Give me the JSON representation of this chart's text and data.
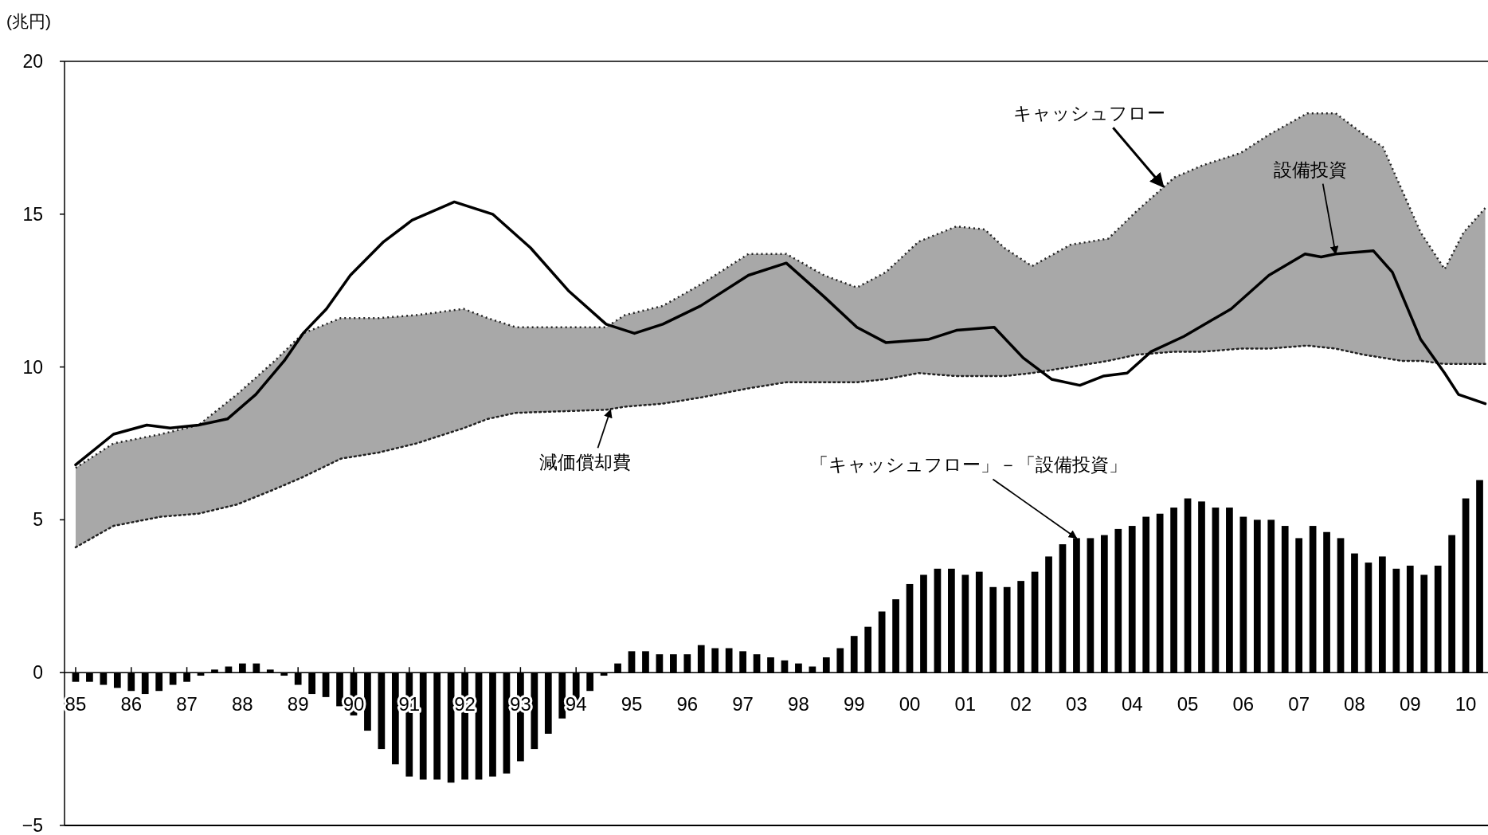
{
  "chart_data": {
    "type": "bar",
    "ylabel": "(兆円)",
    "xlim": [
      1984.8,
      2010.4
    ],
    "ylim": [
      -5,
      20
    ],
    "yticks": [
      -5,
      0,
      5,
      10,
      15,
      20
    ],
    "xticks": [
      {
        "value": 1985,
        "label": "85"
      },
      {
        "value": 1986,
        "label": "86"
      },
      {
        "value": 1987,
        "label": "87"
      },
      {
        "value": 1988,
        "label": "88"
      },
      {
        "value": 1989,
        "label": "89"
      },
      {
        "value": 1990,
        "label": "90"
      },
      {
        "value": 1991,
        "label": "91"
      },
      {
        "value": 1992,
        "label": "92"
      },
      {
        "value": 1993,
        "label": "93"
      },
      {
        "value": 1994,
        "label": "94"
      },
      {
        "value": 1995,
        "label": "95"
      },
      {
        "value": 1996,
        "label": "96"
      },
      {
        "value": 1997,
        "label": "97"
      },
      {
        "value": 1998,
        "label": "98"
      },
      {
        "value": 1999,
        "label": "99"
      },
      {
        "value": 2000,
        "label": "00"
      },
      {
        "value": 2001,
        "label": "01"
      },
      {
        "value": 2002,
        "label": "02"
      },
      {
        "value": 2003,
        "label": "03"
      },
      {
        "value": 2004,
        "label": "04"
      },
      {
        "value": 2005,
        "label": "05"
      },
      {
        "value": 2006,
        "label": "06"
      },
      {
        "value": 2007,
        "label": "07"
      },
      {
        "value": 2008,
        "label": "08"
      },
      {
        "value": 2009,
        "label": "09"
      },
      {
        "value": 2010,
        "label": "10"
      }
    ],
    "series": [
      {
        "type": "area",
        "color": "#a8a8a8",
        "line_style": "dotted",
        "x": [
          1985.0,
          1985.68,
          1986.53,
          1987.21,
          1987.9,
          1988.58,
          1989.09,
          1989.77,
          1990.45,
          1991.13,
          1991.98,
          1992.41,
          1992.92,
          1994.54,
          1994.88,
          1995.56,
          1996.24,
          1997.1,
          1997.78,
          1998.46,
          1999.05,
          1999.57,
          2000.16,
          2000.84,
          2001.35,
          2001.7,
          2002.2,
          2002.89,
          2003.57,
          2004.08,
          2004.76,
          2005.27,
          2005.95,
          2006.46,
          2007.15,
          2007.66,
          2008.17,
          2008.51,
          2008.85,
          2009.19,
          2009.62,
          2009.96,
          2010.35
        ],
        "values": [
          6.7,
          7.5,
          7.8,
          8.1,
          9.1,
          10.2,
          11.1,
          11.6,
          11.6,
          11.7,
          11.9,
          11.6,
          11.3,
          11.3,
          11.7,
          12.0,
          12.7,
          13.7,
          13.7,
          13.0,
          12.6,
          13.1,
          14.1,
          14.6,
          14.5,
          13.9,
          13.3,
          14.0,
          14.2,
          15.1,
          16.2,
          16.6,
          17.0,
          17.6,
          18.3,
          18.3,
          17.6,
          17.2,
          15.8,
          14.4,
          13.2,
          14.4,
          15.2
        ]
      },
      {
        "type": "line",
        "color": "#222222",
        "line_style": "dotted",
        "x": [
          1985.0,
          1985.68,
          1986.53,
          1987.21,
          1987.9,
          1988.58,
          1989.09,
          1989.77,
          1990.45,
          1991.13,
          1991.98,
          1992.41,
          1992.92,
          1994.54,
          1994.88,
          1995.56,
          1996.24,
          1997.1,
          1997.78,
          1998.46,
          1999.05,
          1999.57,
          2000.16,
          2000.84,
          2001.35,
          2001.7,
          2002.2,
          2002.89,
          2003.57,
          2004.08,
          2004.76,
          2005.27,
          2005.95,
          2006.46,
          2007.15,
          2007.66,
          2008.17,
          2008.51,
          2008.85,
          2009.19,
          2009.62,
          2009.96,
          2010.35
        ],
        "values": [
          4.1,
          4.8,
          5.1,
          5.2,
          5.5,
          6.0,
          6.4,
          7.0,
          7.2,
          7.5,
          8.0,
          8.3,
          8.5,
          8.6,
          8.7,
          8.8,
          9.0,
          9.3,
          9.5,
          9.5,
          9.5,
          9.6,
          9.8,
          9.7,
          9.7,
          9.7,
          9.8,
          10.0,
          10.2,
          10.4,
          10.5,
          10.5,
          10.6,
          10.6,
          10.7,
          10.6,
          10.4,
          10.3,
          10.2,
          10.2,
          10.1,
          10.1,
          10.1
        ]
      },
      {
        "type": "line",
        "color": "#000000",
        "line_style": "solid",
        "x": [
          1985.0,
          1985.68,
          1986.28,
          1986.7,
          1987.21,
          1987.73,
          1988.24,
          1988.75,
          1989.09,
          1989.51,
          1989.94,
          1990.54,
          1991.05,
          1991.81,
          1992.5,
          1993.18,
          1993.86,
          1994.54,
          1995.05,
          1995.56,
          1996.24,
          1997.1,
          1997.78,
          1998.46,
          1999.05,
          1999.57,
          2000.33,
          2000.84,
          2001.52,
          2002.04,
          2002.55,
          2003.06,
          2003.48,
          2003.91,
          2004.34,
          2004.93,
          2005.78,
          2006.46,
          2007.11,
          2007.4,
          2007.66,
          2008.34,
          2008.68,
          2009.19,
          2009.62,
          2009.87,
          2010.35
        ],
        "values": [
          6.8,
          7.8,
          8.1,
          8.0,
          8.1,
          8.3,
          9.1,
          10.2,
          11.1,
          11.9,
          13.0,
          14.1,
          14.8,
          15.4,
          15.0,
          13.9,
          12.5,
          11.4,
          11.1,
          11.4,
          12.0,
          13.0,
          13.4,
          12.3,
          11.3,
          10.8,
          10.9,
          11.2,
          11.3,
          10.3,
          9.6,
          9.4,
          9.7,
          9.8,
          10.5,
          11.0,
          11.9,
          13.0,
          13.7,
          13.6,
          13.7,
          13.8,
          13.1,
          10.9,
          9.8,
          9.1,
          8.8
        ]
      },
      {
        "color": "#000000",
        "x": [
          1985,
          1985.25,
          1985.5,
          1985.75,
          1986,
          1986.25,
          1986.5,
          1986.75,
          1987,
          1987.25,
          1987.5,
          1987.75,
          1988,
          1988.25,
          1988.5,
          1988.75,
          1989,
          1989.25,
          1989.5,
          1989.75,
          1990,
          1990.25,
          1990.5,
          1990.75,
          1991,
          1991.25,
          1991.5,
          1991.75,
          1992,
          1992.25,
          1992.5,
          1992.75,
          1993,
          1993.25,
          1993.5,
          1993.75,
          1994,
          1994.25,
          1994.5,
          1994.75,
          1995,
          1995.25,
          1995.5,
          1995.75,
          1996,
          1996.25,
          1996.5,
          1996.75,
          1997,
          1997.25,
          1997.5,
          1997.75,
          1998,
          1998.25,
          1998.5,
          1998.75,
          1999,
          1999.25,
          1999.5,
          1999.75,
          2000,
          2000.25,
          2000.5,
          2000.75,
          2001,
          2001.25,
          2001.5,
          2001.75,
          2002,
          2002.25,
          2002.5,
          2002.75,
          2003,
          2003.25,
          2003.5,
          2003.75,
          2004,
          2004.25,
          2004.5,
          2004.75,
          2005,
          2005.25,
          2005.5,
          2005.75,
          2006,
          2006.25,
          2006.5,
          2006.75,
          2007,
          2007.25,
          2007.5,
          2007.75,
          2008,
          2008.25,
          2008.5,
          2008.75,
          2009,
          2009.25,
          2009.5,
          2009.75,
          2010,
          2010.25
        ],
        "values": [
          -0.3,
          -0.3,
          -0.4,
          -0.5,
          -0.6,
          -0.7,
          -0.6,
          -0.4,
          -0.3,
          -0.1,
          0.1,
          0.2,
          0.3,
          0.3,
          0.1,
          -0.1,
          -0.4,
          -0.7,
          -0.8,
          -1.1,
          -1.4,
          -1.9,
          -2.5,
          -3.0,
          -3.4,
          -3.5,
          -3.5,
          -3.6,
          -3.5,
          -3.5,
          -3.4,
          -3.3,
          -2.9,
          -2.5,
          -2.0,
          -1.5,
          -1.0,
          -0.6,
          -0.1,
          0.3,
          0.7,
          0.7,
          0.6,
          0.6,
          0.6,
          0.9,
          0.8,
          0.8,
          0.7,
          0.6,
          0.5,
          0.4,
          0.3,
          0.2,
          0.5,
          0.8,
          1.2,
          1.5,
          2.0,
          2.4,
          2.9,
          3.2,
          3.4,
          3.4,
          3.2,
          3.3,
          2.8,
          2.8,
          3.0,
          3.3,
          3.8,
          4.2,
          4.4,
          4.4,
          4.5,
          4.7,
          4.8,
          5.1,
          5.2,
          5.4,
          5.7,
          5.6,
          5.4,
          5.4,
          5.1,
          5.0,
          5.0,
          4.8,
          4.4,
          4.8,
          4.6,
          4.4,
          3.9,
          3.6,
          3.8,
          3.4,
          3.5,
          3.2,
          3.5,
          4.5,
          5.7,
          6.3
        ]
      }
    ],
    "annotations": [
      {
        "text": "キャッシュフロー",
        "x": 2004.56,
        "y": 15.9
      },
      {
        "text": "設備投資",
        "x": 2007.66,
        "y": 13.7
      },
      {
        "text": "減価償却費",
        "x": 1994.62,
        "y": 8.6
      },
      {
        "text": "「キャッシュフロー」－「設備投資」",
        "x": 2003.0,
        "y": 4.4
      }
    ]
  }
}
